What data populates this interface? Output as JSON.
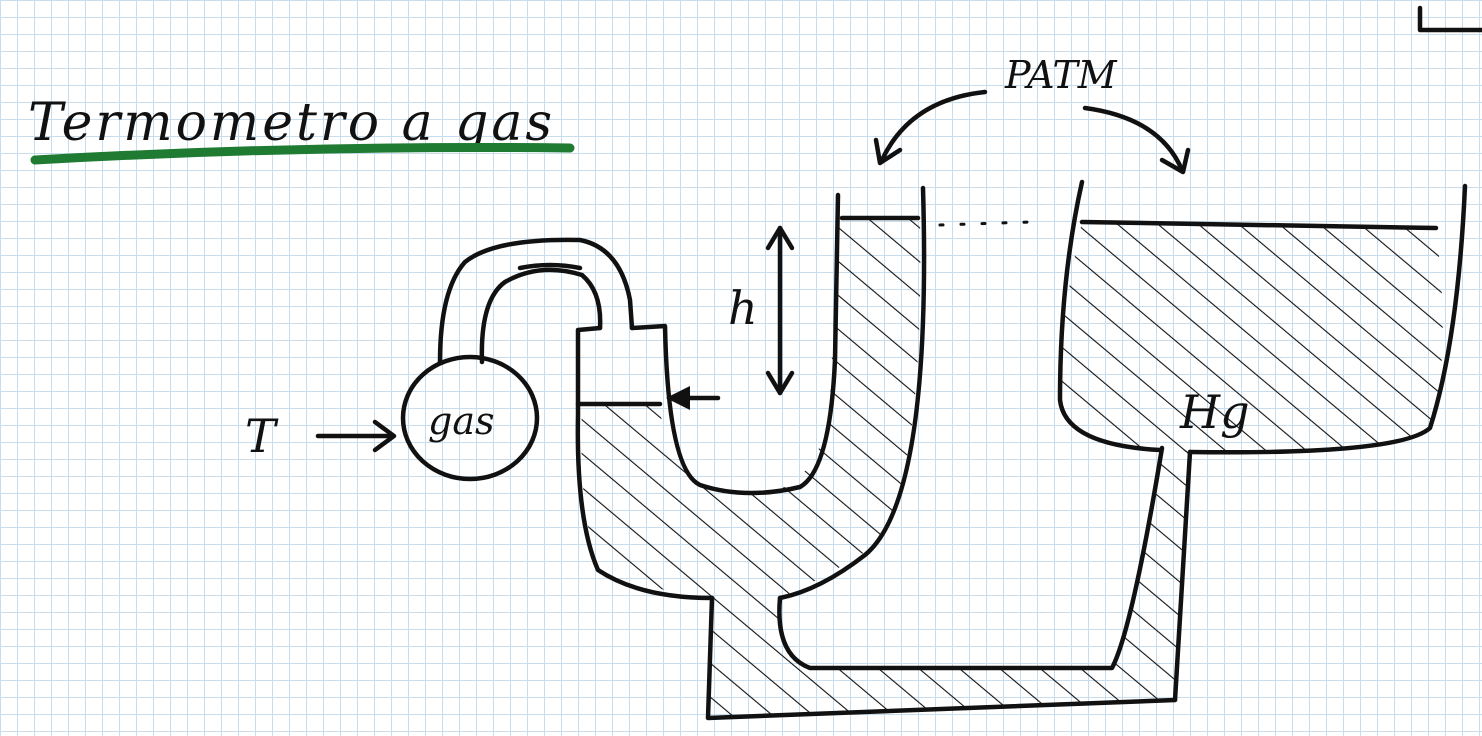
{
  "title": "Termometro a gas",
  "labels": {
    "temperature": "T",
    "gas": "gas",
    "height": "h",
    "atmospheric_pressure": "PATM",
    "mercury": "Hg"
  },
  "colors": {
    "ink": "#111111",
    "title_underline": "#1f7a32",
    "grid": "#c7dcec"
  }
}
